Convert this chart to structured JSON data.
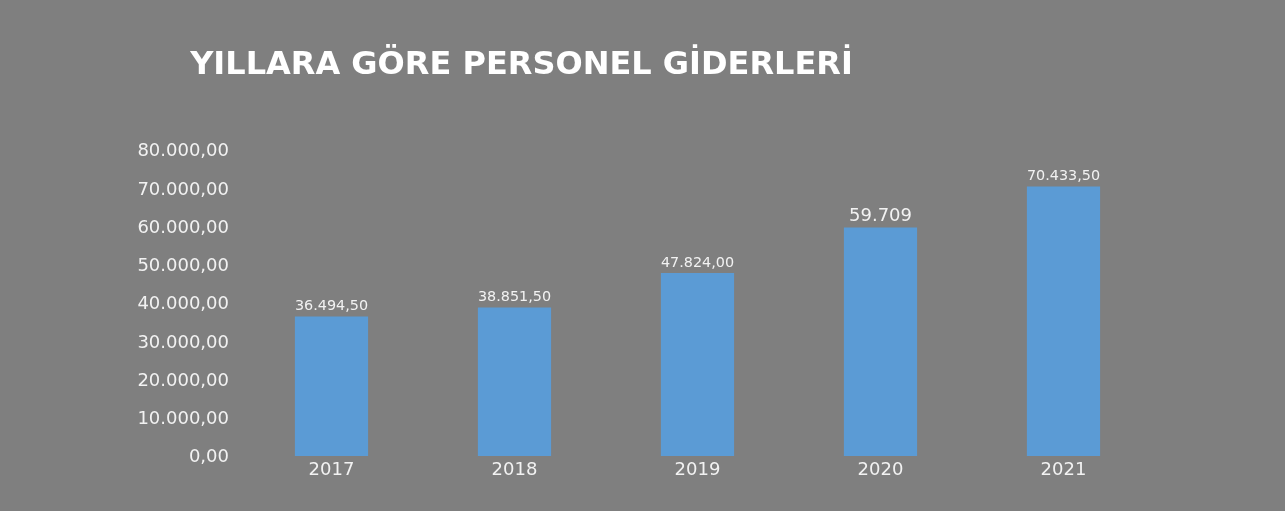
{
  "chart_data": {
    "type": "bar",
    "title": "YILLARA GÖRE PERSONEL GİDERLERİ",
    "categories": [
      "2017",
      "2018",
      "2019",
      "2020",
      "2021"
    ],
    "values": [
      36494.5,
      38851.5,
      47824,
      59709,
      70433.5
    ],
    "value_labels": [
      "36.494,50",
      "38.851,50",
      "47.824,00",
      "59.709",
      "70.433,50"
    ],
    "color": "#5b9bd5",
    "ylim": [
      0,
      80000
    ],
    "yticks": [
      {
        "value": 0,
        "label": "0,00"
      },
      {
        "value": 10000,
        "label": "10.000,00"
      },
      {
        "value": 20000,
        "label": "20.000,00"
      },
      {
        "value": 30000,
        "label": "30.000,00"
      },
      {
        "value": 40000,
        "label": "40.000,00"
      },
      {
        "value": 50000,
        "label": "50.000,00"
      },
      {
        "value": 60000,
        "label": "60.000,00"
      },
      {
        "value": 70000,
        "label": "70.000,00"
      },
      {
        "value": 80000,
        "label": "80.000,00"
      }
    ],
    "grid": false
  }
}
